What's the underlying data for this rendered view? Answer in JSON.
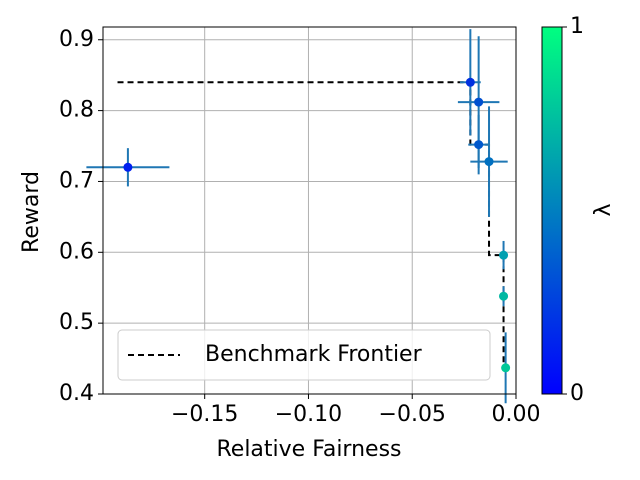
{
  "chart_data": {
    "type": "scatter",
    "xlabel": "Relative Fairness",
    "ylabel": "Reward",
    "xlim": [
      -0.199,
      0.0
    ],
    "ylim": [
      0.4,
      0.918
    ],
    "xticks": [
      {
        "value": -0.15,
        "label": "−0.15"
      },
      {
        "value": -0.1,
        "label": "−0.10"
      },
      {
        "value": -0.05,
        "label": "−0.05"
      },
      {
        "value": 0.0,
        "label": "0.00"
      }
    ],
    "yticks": [
      0.4,
      0.5,
      0.6,
      0.7,
      0.8,
      0.9
    ],
    "grid": true,
    "legend": "lower left",
    "points": {
      "x": [
        -0.187,
        -0.022,
        -0.018,
        -0.018,
        -0.013,
        -0.006,
        -0.006,
        -0.005
      ],
      "y": [
        0.72,
        0.84,
        0.812,
        0.752,
        0.728,
        0.596,
        0.538,
        0.437
      ],
      "xerr": [
        0.02,
        0.005,
        0.01,
        0.005,
        0.009,
        0.002,
        0.002,
        0.002
      ],
      "yerr": [
        0.027,
        0.075,
        0.093,
        0.042,
        0.078,
        0.02,
        0.014,
        0.05
      ],
      "colors": [
        "#0020f0",
        "#0030e0",
        "#0050d0",
        "#0058cc",
        "#0070c0",
        "#00a0b0",
        "#00b8a2",
        "#00c898"
      ],
      "error_color": "#1f77b4"
    },
    "series": [
      {
        "name": "Benchmark Frontier",
        "type": "line",
        "style": "dashed",
        "color": "#000000",
        "x": [
          -0.192,
          -0.022,
          -0.022,
          -0.013,
          -0.013,
          -0.006,
          -0.006
        ],
        "y": [
          0.84,
          0.84,
          0.752,
          0.752,
          0.596,
          0.596,
          0.437
        ]
      }
    ],
    "colorbar": {
      "label": "λ",
      "lim": [
        0,
        1
      ],
      "ticks": [
        0,
        1
      ],
      "colormap": [
        "#0000ff",
        "#00ff80"
      ]
    }
  }
}
